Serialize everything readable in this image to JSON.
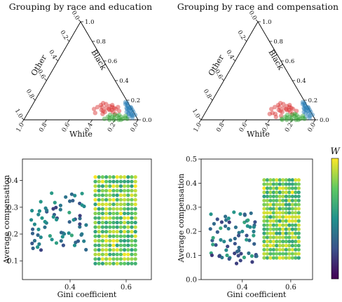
{
  "chart_data": [
    {
      "type": "scatter",
      "subtype": "ternary",
      "title": "Grouping by race and education",
      "axis_labels": {
        "bottom": "White",
        "right": "Black",
        "left": "Other"
      },
      "ticks": [
        "0.0",
        "0.2",
        "0.4",
        "0.6",
        "0.8",
        "1.0"
      ],
      "series": [
        {
          "color": "#1f77b4",
          "points": [
            [
              0.95,
              0.05,
              0.0
            ],
            [
              0.92,
              0.08,
              0.0
            ],
            [
              0.9,
              0.1,
              0.0
            ],
            [
              0.88,
              0.12,
              0.0
            ],
            [
              0.93,
              0.04,
              0.03
            ],
            [
              0.89,
              0.09,
              0.02
            ],
            [
              0.86,
              0.12,
              0.02
            ],
            [
              0.84,
              0.14,
              0.02
            ],
            [
              0.91,
              0.06,
              0.03
            ],
            [
              0.87,
              0.1,
              0.03
            ],
            [
              0.85,
              0.11,
              0.04
            ],
            [
              0.83,
              0.15,
              0.02
            ],
            [
              0.82,
              0.17,
              0.01
            ],
            [
              0.88,
              0.07,
              0.05
            ],
            [
              0.86,
              0.08,
              0.06
            ],
            [
              0.9,
              0.03,
              0.07
            ],
            [
              0.8,
              0.18,
              0.02
            ],
            [
              0.94,
              0.02,
              0.04
            ],
            [
              0.87,
              0.13,
              0.0
            ],
            [
              0.84,
              0.12,
              0.04
            ],
            [
              0.81,
              0.16,
              0.03
            ],
            [
              0.89,
              0.06,
              0.05
            ],
            [
              0.92,
              0.05,
              0.03
            ]
          ]
        },
        {
          "color": "#d62728",
          "points": [
            [
              0.62,
              0.13,
              0.25
            ],
            [
              0.66,
              0.12,
              0.22
            ],
            [
              0.7,
              0.1,
              0.2
            ],
            [
              0.72,
              0.1,
              0.18
            ],
            [
              0.64,
              0.16,
              0.2
            ],
            [
              0.68,
              0.14,
              0.18
            ],
            [
              0.74,
              0.08,
              0.18
            ],
            [
              0.6,
              0.15,
              0.25
            ],
            [
              0.63,
              0.1,
              0.27
            ],
            [
              0.67,
              0.08,
              0.25
            ],
            [
              0.71,
              0.13,
              0.16
            ],
            [
              0.75,
              0.11,
              0.14
            ],
            [
              0.58,
              0.13,
              0.29
            ],
            [
              0.69,
              0.11,
              0.2
            ],
            [
              0.73,
              0.12,
              0.15
            ],
            [
              0.65,
              0.09,
              0.26
            ],
            [
              0.77,
              0.06,
              0.17
            ],
            [
              0.61,
              0.17,
              0.22
            ],
            [
              0.7,
              0.15,
              0.15
            ],
            [
              0.56,
              0.11,
              0.33
            ],
            [
              0.59,
              0.07,
              0.34
            ],
            [
              0.79,
              0.09,
              0.12
            ],
            [
              0.76,
              0.13,
              0.11
            ],
            [
              0.66,
              0.06,
              0.28
            ]
          ]
        },
        {
          "color": "#2ca02c",
          "points": [
            [
              0.82,
              0.02,
              0.16
            ],
            [
              0.78,
              0.02,
              0.2
            ],
            [
              0.86,
              0.01,
              0.13
            ],
            [
              0.8,
              0.04,
              0.16
            ],
            [
              0.76,
              0.03,
              0.21
            ],
            [
              0.84,
              0.03,
              0.13
            ],
            [
              0.74,
              0.02,
              0.24
            ],
            [
              0.88,
              0.02,
              0.1
            ],
            [
              0.79,
              0.0,
              0.21
            ],
            [
              0.83,
              0.0,
              0.17
            ],
            [
              0.72,
              0.03,
              0.25
            ],
            [
              0.7,
              0.01,
              0.29
            ],
            [
              0.87,
              0.04,
              0.09
            ],
            [
              0.81,
              0.05,
              0.14
            ],
            [
              0.77,
              0.05,
              0.18
            ],
            [
              0.85,
              0.0,
              0.15
            ],
            [
              0.9,
              0.01,
              0.09
            ],
            [
              0.75,
              0.0,
              0.25
            ],
            [
              0.73,
              0.05,
              0.22
            ]
          ]
        }
      ]
    },
    {
      "type": "scatter",
      "subtype": "ternary",
      "title": "Grouping by race and compensation",
      "axis_labels": {
        "bottom": "White",
        "right": "Black",
        "left": "Other"
      },
      "ticks": [
        "0.0",
        "0.2",
        "0.4",
        "0.6",
        "0.8",
        "1.0"
      ],
      "series": [
        {
          "color": "#1f77b4",
          "points": [
            [
              0.95,
              0.05,
              0.0
            ],
            [
              0.92,
              0.08,
              0.0
            ],
            [
              0.9,
              0.1,
              0.0
            ],
            [
              0.88,
              0.12,
              0.0
            ],
            [
              0.93,
              0.04,
              0.03
            ],
            [
              0.89,
              0.09,
              0.02
            ],
            [
              0.86,
              0.12,
              0.02
            ],
            [
              0.84,
              0.14,
              0.02
            ],
            [
              0.91,
              0.06,
              0.03
            ],
            [
              0.87,
              0.1,
              0.03
            ],
            [
              0.85,
              0.11,
              0.04
            ],
            [
              0.83,
              0.15,
              0.02
            ],
            [
              0.82,
              0.17,
              0.01
            ],
            [
              0.88,
              0.07,
              0.05
            ],
            [
              0.86,
              0.08,
              0.06
            ],
            [
              0.9,
              0.03,
              0.07
            ],
            [
              0.8,
              0.18,
              0.02
            ],
            [
              0.94,
              0.02,
              0.04
            ],
            [
              0.87,
              0.13,
              0.0
            ],
            [
              0.84,
              0.12,
              0.04
            ],
            [
              0.81,
              0.16,
              0.03
            ]
          ]
        },
        {
          "color": "#d62728",
          "points": [
            [
              0.62,
              0.13,
              0.25
            ],
            [
              0.66,
              0.12,
              0.22
            ],
            [
              0.7,
              0.1,
              0.2
            ],
            [
              0.72,
              0.1,
              0.18
            ],
            [
              0.64,
              0.16,
              0.2
            ],
            [
              0.68,
              0.14,
              0.18
            ],
            [
              0.74,
              0.08,
              0.18
            ],
            [
              0.6,
              0.15,
              0.25
            ],
            [
              0.63,
              0.1,
              0.27
            ],
            [
              0.67,
              0.08,
              0.25
            ],
            [
              0.71,
              0.13,
              0.16
            ],
            [
              0.75,
              0.11,
              0.14
            ],
            [
              0.58,
              0.13,
              0.29
            ],
            [
              0.69,
              0.11,
              0.2
            ],
            [
              0.73,
              0.12,
              0.15
            ],
            [
              0.65,
              0.09,
              0.26
            ],
            [
              0.77,
              0.06,
              0.17
            ],
            [
              0.61,
              0.17,
              0.22
            ],
            [
              0.7,
              0.15,
              0.15
            ],
            [
              0.56,
              0.11,
              0.33
            ],
            [
              0.59,
              0.07,
              0.34
            ],
            [
              0.79,
              0.09,
              0.12
            ],
            [
              0.62,
              0.06,
              0.32
            ],
            [
              0.68,
              0.04,
              0.28
            ],
            [
              0.64,
              0.03,
              0.33
            ],
            [
              0.57,
              0.06,
              0.37
            ]
          ]
        },
        {
          "color": "#2ca02c",
          "points": [
            [
              0.82,
              0.02,
              0.16
            ],
            [
              0.78,
              0.02,
              0.2
            ],
            [
              0.86,
              0.01,
              0.13
            ],
            [
              0.8,
              0.04,
              0.16
            ],
            [
              0.76,
              0.03,
              0.21
            ],
            [
              0.84,
              0.03,
              0.13
            ],
            [
              0.74,
              0.02,
              0.24
            ],
            [
              0.88,
              0.02,
              0.1
            ],
            [
              0.79,
              0.0,
              0.21
            ],
            [
              0.83,
              0.0,
              0.17
            ],
            [
              0.72,
              0.03,
              0.25
            ],
            [
              0.7,
              0.01,
              0.29
            ],
            [
              0.87,
              0.04,
              0.09
            ],
            [
              0.81,
              0.05,
              0.14
            ],
            [
              0.77,
              0.05,
              0.18
            ],
            [
              0.85,
              0.0,
              0.15
            ],
            [
              0.9,
              0.01,
              0.09
            ],
            [
              0.75,
              0.0,
              0.25
            ],
            [
              0.73,
              0.05,
              0.22
            ],
            [
              0.79,
              0.06,
              0.15
            ],
            [
              0.71,
              0.0,
              0.29
            ]
          ]
        }
      ]
    },
    {
      "type": "scatter",
      "xlabel": "Gini coefficient",
      "ylabel": "Average compensation",
      "xlim": [
        0.23,
        0.69
      ],
      "ylim": [
        0.03,
        0.48
      ],
      "xticks": [
        "0.4",
        "0.6"
      ],
      "yticks": [
        "0.1",
        "0.2",
        "0.3",
        "0.4"
      ],
      "color_by": "W",
      "note": "dense cluster of points between Gini 0.48 and 0.64"
    },
    {
      "type": "scatter",
      "xlabel": "Gini coefficient",
      "ylabel": "Average compensation",
      "xlim": [
        0.23,
        0.69
      ],
      "ylim": [
        0.0,
        0.5
      ],
      "xticks": [
        "0.4",
        "0.6"
      ],
      "yticks": [
        "0.0",
        "0.1",
        "0.2",
        "0.3",
        "0.4",
        "0.5"
      ],
      "color_by": "W",
      "note": "dense cluster of points between Gini 0.48 and 0.64"
    }
  ],
  "colorbar": {
    "label": "W",
    "colormap": "viridis"
  }
}
